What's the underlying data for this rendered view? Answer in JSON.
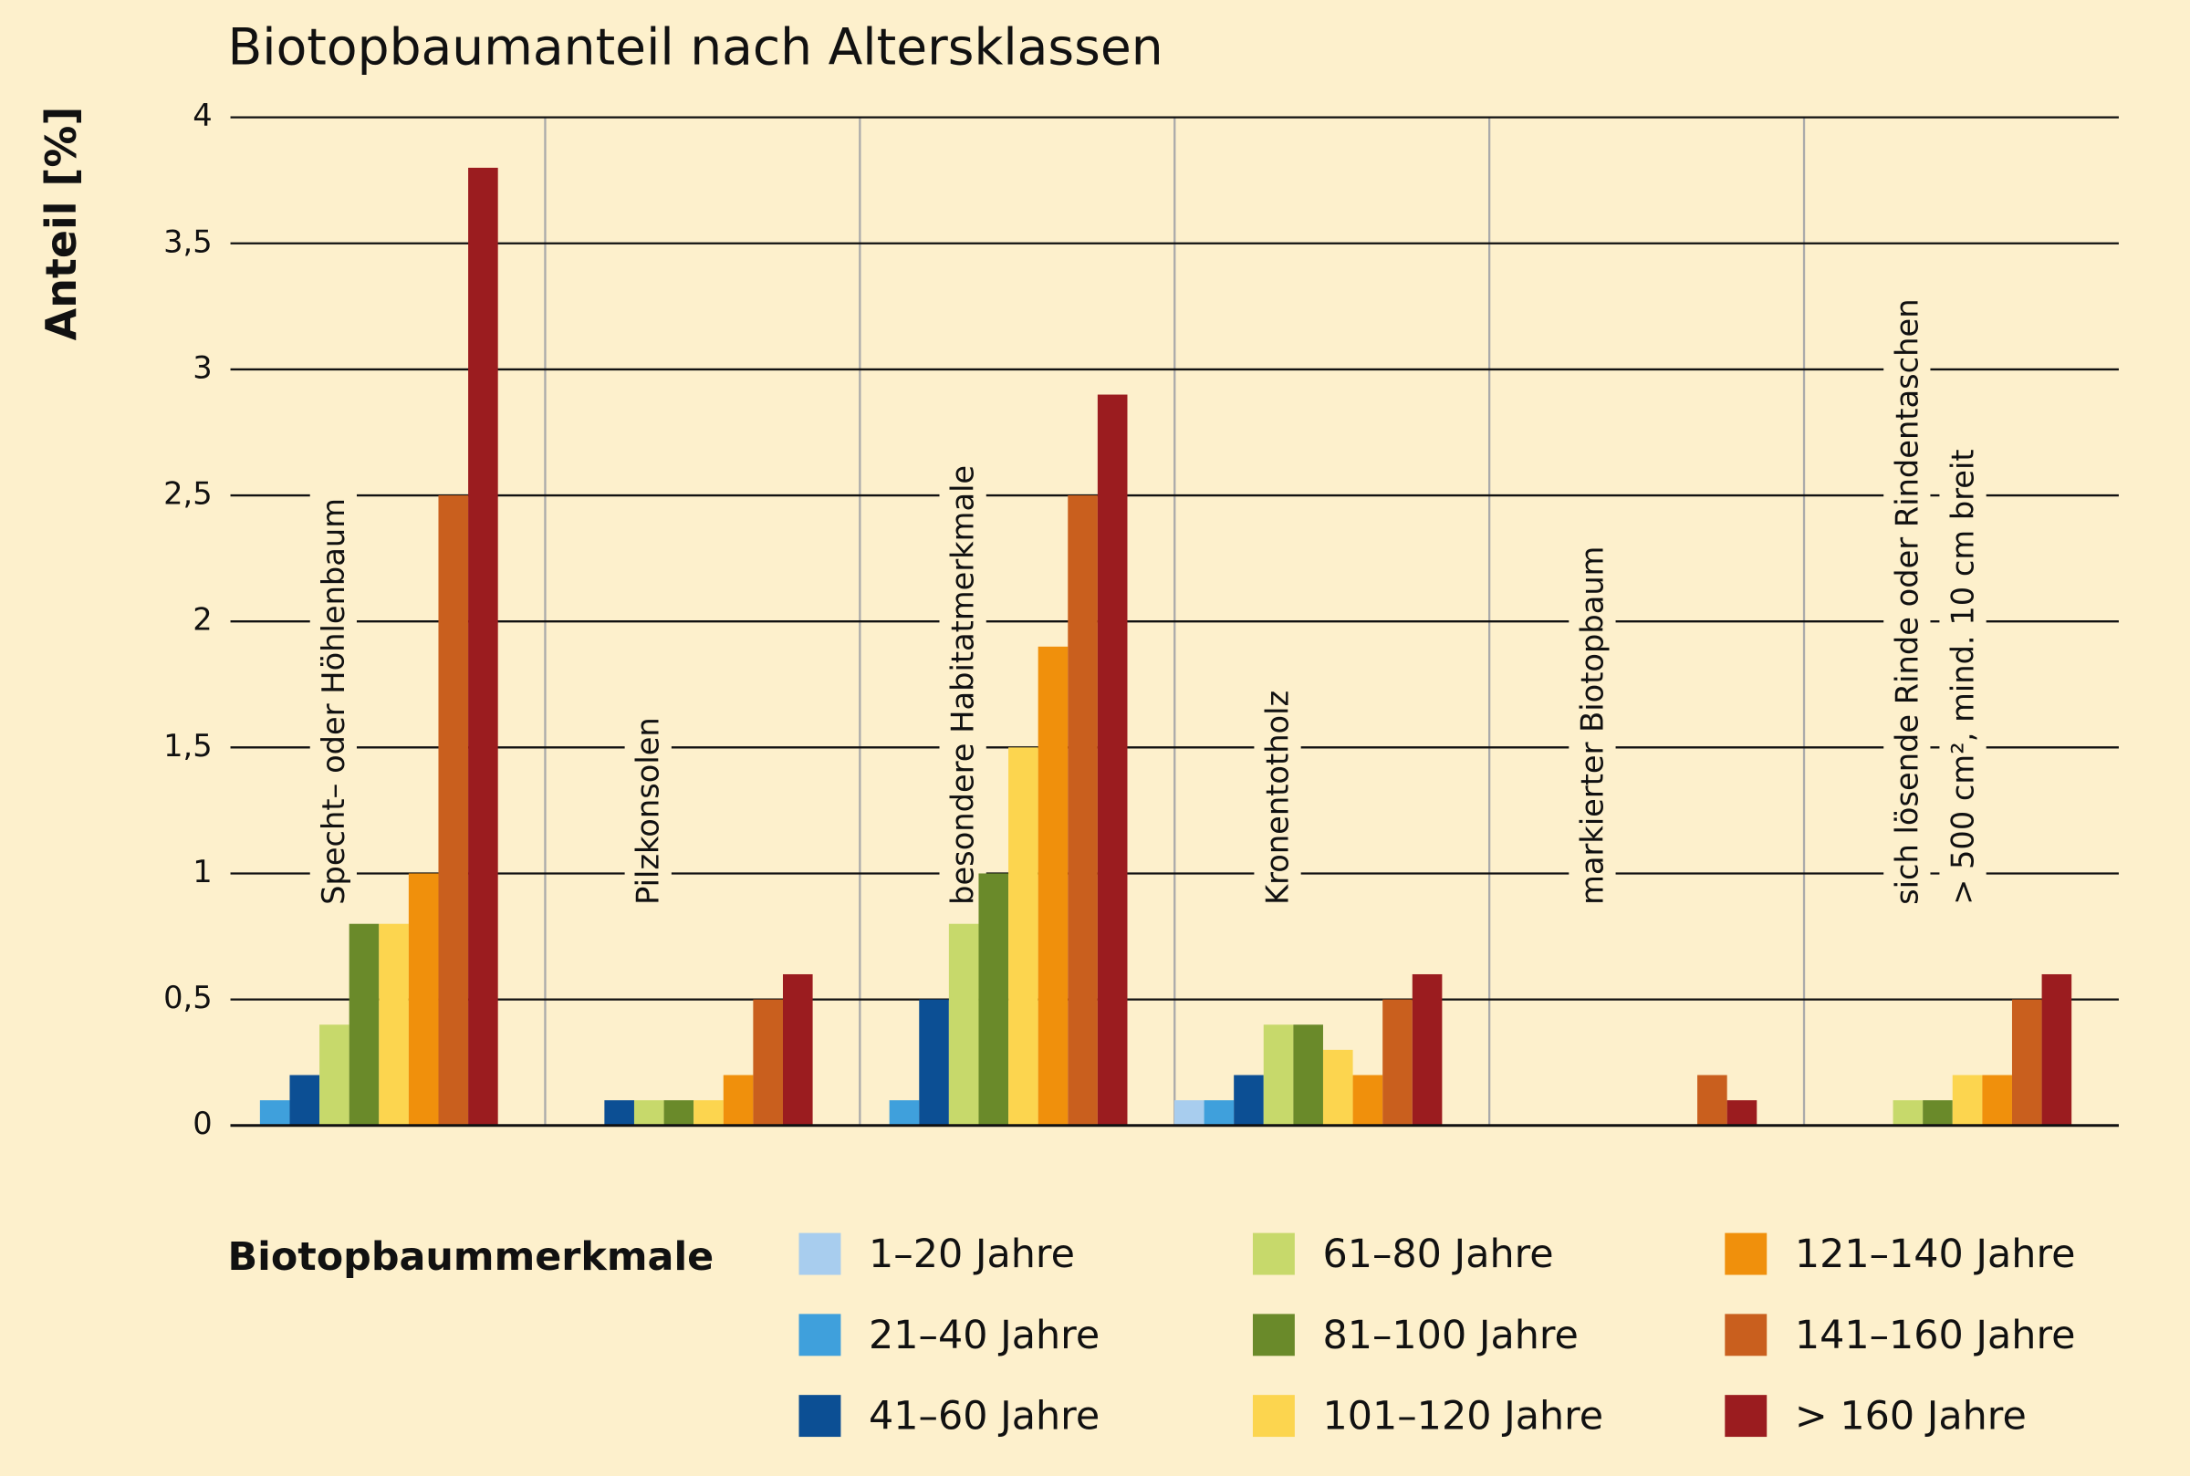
{
  "chart_data": {
    "type": "bar",
    "title": "Biotopbaumanteil nach Altersklassen",
    "y_label": "Anteil [%]",
    "legend_title": "Biotopbaummerkmale",
    "categories": [
      [
        "Specht– oder Höhlenbaum"
      ],
      [
        "Pilzkonsolen"
      ],
      [
        "besondere Habitatmerkmale"
      ],
      [
        "Kronentotholz"
      ],
      [
        "markierter Biotopbaum"
      ],
      [
        "sich lösende Rinde oder Rindentaschen",
        "> 500 cm², mind. 10 cm breit"
      ]
    ],
    "series": [
      {
        "name": "1–20 Jahre",
        "color": "#a8cdee",
        "values": [
          0,
          0,
          0,
          0.1,
          0,
          0
        ]
      },
      {
        "name": "21–40 Jahre",
        "color": "#3fa0dc",
        "values": [
          0.1,
          0,
          0.1,
          0.1,
          0,
          0
        ]
      },
      {
        "name": "41–60 Jahre",
        "color": "#0c4f94",
        "values": [
          0.2,
          0.1,
          0.5,
          0.2,
          0,
          0
        ]
      },
      {
        "name": "61–80 Jahre",
        "color": "#c7d96b",
        "values": [
          0.4,
          0.1,
          0.8,
          0.4,
          0,
          0.1
        ]
      },
      {
        "name": "81–100 Jahre",
        "color": "#6a8a2a",
        "values": [
          0.8,
          0.1,
          1.0,
          0.4,
          0,
          0.1
        ]
      },
      {
        "name": "101–120 Jahre",
        "color": "#fcd54f",
        "values": [
          0.8,
          0.1,
          1.5,
          0.3,
          0,
          0.2
        ]
      },
      {
        "name": "121–140 Jahre",
        "color": "#f0900c",
        "values": [
          1.0,
          0.2,
          1.9,
          0.2,
          0,
          0.2
        ]
      },
      {
        "name": "141–160 Jahre",
        "color": "#c95f1e",
        "values": [
          2.5,
          0.5,
          2.5,
          0.5,
          0.2,
          0.5
        ]
      },
      {
        "name": "> 160 Jahre",
        "color": "#9b1c1f",
        "values": [
          3.8,
          0.6,
          2.9,
          0.6,
          0.1,
          0.6
        ]
      }
    ],
    "ylim": [
      0,
      4
    ],
    "yticks": [
      0,
      {
        "value": 0.5,
        "label": "0,5"
      },
      1,
      {
        "value": 1.5,
        "label": "1,5"
      },
      2,
      {
        "value": 2.5,
        "label": "2,5"
      },
      3,
      {
        "value": 3.5,
        "label": "3,5"
      },
      4
    ],
    "grid": true
  }
}
